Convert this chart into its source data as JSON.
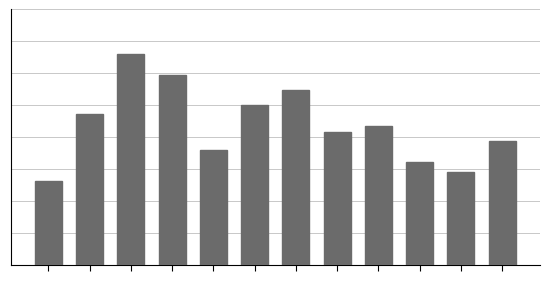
{
  "values": [
    28,
    50,
    70,
    63,
    38,
    53,
    58,
    44,
    46,
    34,
    31,
    41
  ],
  "bar_color": "#6b6b6b",
  "background_color": "#ffffff",
  "ylim": [
    0,
    85
  ],
  "grid_color": "#c8c8c8",
  "spine_color": "#000000",
  "grid_linewidth": 0.7,
  "bar_width": 0.65,
  "num_yticks": 8,
  "figsize": [
    5.45,
    2.85
  ],
  "dpi": 100
}
